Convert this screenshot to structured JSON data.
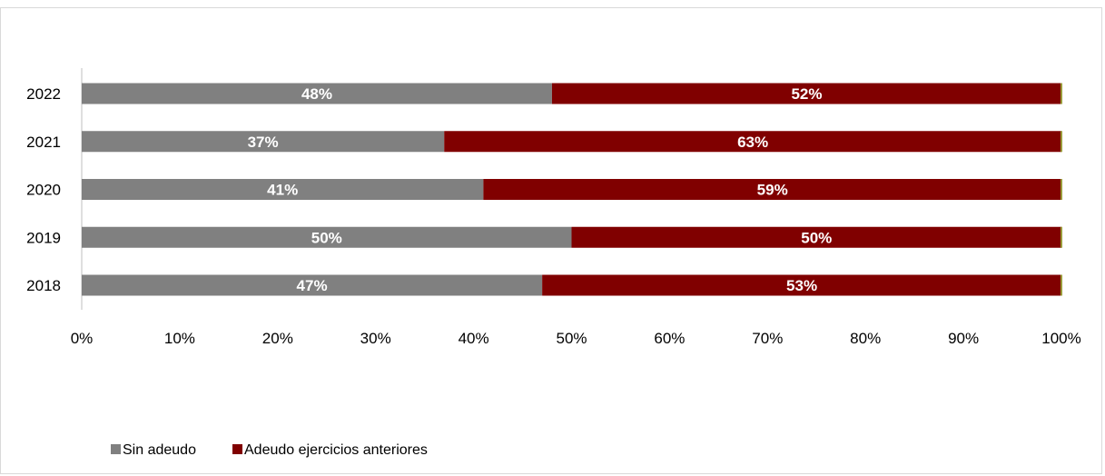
{
  "chart_data": {
    "type": "bar",
    "orientation": "horizontal",
    "stacked": "percent",
    "categories": [
      "2022",
      "2021",
      "2020",
      "2019",
      "2018"
    ],
    "series": [
      {
        "name": "Sin adeudo",
        "values": [
          48,
          37,
          41,
          50,
          47
        ],
        "color": "#808080"
      },
      {
        "name": "Adeudo ejercicios anteriores",
        "values": [
          52,
          63,
          59,
          50,
          53
        ],
        "color": "#800000"
      }
    ],
    "data_labels": {
      "series0": [
        "48%",
        "37%",
        "41%",
        "50%",
        "47%"
      ],
      "series1": [
        "52%",
        "63%",
        "59%",
        "50%",
        "53%"
      ]
    },
    "x_ticks": [
      "0%",
      "10%",
      "20%",
      "30%",
      "40%",
      "50%",
      "60%",
      "70%",
      "80%",
      "90%",
      "100%"
    ],
    "xlim": [
      0,
      100
    ],
    "title": "",
    "xlabel": "",
    "ylabel": "",
    "grid": false,
    "legend": "bottom-left"
  }
}
